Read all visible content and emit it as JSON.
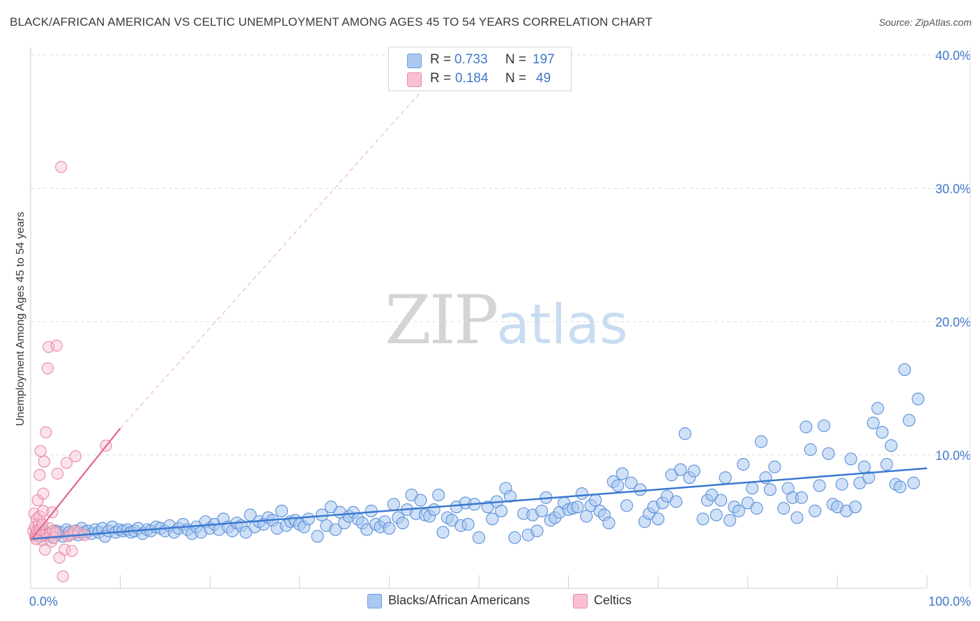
{
  "title": "BLACK/AFRICAN AMERICAN VS CELTIC UNEMPLOYMENT AMONG AGES 45 TO 54 YEARS CORRELATION CHART",
  "source": "Source: ZipAtlas.com",
  "watermark": {
    "zip": "ZIP",
    "atlas": "atlas"
  },
  "legend": {
    "rows": [
      {
        "r_label": "R =",
        "r_value": "0.733",
        "n_label": "N =",
        "n_value": "197",
        "color": "#aac8f0",
        "border": "#6a9ee0"
      },
      {
        "r_label": "R =",
        "r_value": "0.184",
        "n_label": "N =",
        "n_value": "49",
        "color": "#f8c0d0",
        "border": "#e88aa8"
      }
    ]
  },
  "bottom_legend": [
    {
      "label": "Blacks/African Americans",
      "color": "#aac8f0",
      "border": "#6a9ee0"
    },
    {
      "label": "Celtics",
      "color": "#f8c0d0",
      "border": "#e88aa8"
    }
  ],
  "chart_data": {
    "type": "scatter",
    "title": "BLACK/AFRICAN AMERICAN VS CELTIC UNEMPLOYMENT AMONG AGES 45 TO 54 YEARS CORRELATION CHART",
    "xlabel": "",
    "ylabel": "Unemployment Among Ages 45 to 54 years",
    "xlim": [
      0,
      100
    ],
    "ylim": [
      0,
      41
    ],
    "x_tick_labels": [
      "0.0%",
      "100.0%"
    ],
    "y_ticks": [
      10,
      20,
      30,
      40
    ],
    "y_tick_labels": [
      "10.0%",
      "20.0%",
      "30.0%",
      "40.0%"
    ],
    "grid": true,
    "colors": {
      "blue": "#5a8fd8",
      "blue_fill": "#aac8f0",
      "blue_line": "#3a78d0",
      "pink": "#e886a6",
      "pink_fill": "#f8c0d0",
      "pink_line": "#e0648c"
    },
    "series": [
      {
        "name": "Blacks/African Americans",
        "trend": {
          "x": [
            0,
            100
          ],
          "y": [
            3.7,
            9.0
          ]
        },
        "points": [
          [
            0.6,
            4.0
          ],
          [
            0.9,
            4.2
          ],
          [
            1.2,
            3.9
          ],
          [
            1.5,
            4.3
          ],
          [
            1.8,
            4.1
          ],
          [
            2.1,
            4.0
          ],
          [
            2.5,
            3.8
          ],
          [
            2.8,
            4.3
          ],
          [
            3.0,
            4.1
          ],
          [
            3.3,
            4.2
          ],
          [
            3.6,
            3.9
          ],
          [
            4.0,
            4.4
          ],
          [
            4.3,
            4.2
          ],
          [
            4.7,
            4.1
          ],
          [
            5.0,
            4.3
          ],
          [
            5.3,
            4.0
          ],
          [
            5.7,
            4.5
          ],
          [
            6.0,
            4.2
          ],
          [
            6.4,
            4.3
          ],
          [
            6.8,
            4.1
          ],
          [
            7.2,
            4.4
          ],
          [
            7.6,
            4.2
          ],
          [
            8.0,
            4.5
          ],
          [
            8.3,
            3.9
          ],
          [
            8.7,
            4.3
          ],
          [
            9.1,
            4.6
          ],
          [
            9.5,
            4.2
          ],
          [
            9.9,
            4.4
          ],
          [
            10.3,
            4.3
          ],
          [
            10.8,
            4.4
          ],
          [
            11.2,
            4.2
          ],
          [
            11.6,
            4.3
          ],
          [
            12.0,
            4.5
          ],
          [
            12.5,
            4.1
          ],
          [
            13.0,
            4.4
          ],
          [
            13.4,
            4.3
          ],
          [
            14.0,
            4.6
          ],
          [
            14.5,
            4.5
          ],
          [
            15.0,
            4.3
          ],
          [
            15.5,
            4.7
          ],
          [
            16.0,
            4.2
          ],
          [
            16.5,
            4.5
          ],
          [
            17.0,
            4.8
          ],
          [
            17.5,
            4.4
          ],
          [
            18.0,
            4.1
          ],
          [
            18.5,
            4.6
          ],
          [
            19.0,
            4.2
          ],
          [
            19.5,
            5.0
          ],
          [
            20.0,
            4.5
          ],
          [
            20.5,
            4.8
          ],
          [
            21.0,
            4.4
          ],
          [
            21.5,
            5.2
          ],
          [
            22.0,
            4.6
          ],
          [
            22.5,
            4.3
          ],
          [
            23.0,
            4.9
          ],
          [
            23.5,
            4.7
          ],
          [
            24.0,
            4.2
          ],
          [
            24.5,
            5.5
          ],
          [
            25.0,
            4.6
          ],
          [
            25.5,
            5.0
          ],
          [
            26.0,
            4.8
          ],
          [
            26.5,
            5.3
          ],
          [
            27.0,
            5.1
          ],
          [
            27.5,
            4.5
          ],
          [
            28.0,
            5.8
          ],
          [
            28.5,
            4.7
          ],
          [
            29.0,
            5.0
          ],
          [
            29.5,
            5.1
          ],
          [
            30.0,
            4.8
          ],
          [
            30.5,
            4.6
          ],
          [
            31.0,
            5.2
          ],
          [
            32.0,
            3.9
          ],
          [
            32.5,
            5.5
          ],
          [
            33.0,
            4.7
          ],
          [
            33.5,
            6.1
          ],
          [
            34.0,
            4.4
          ],
          [
            34.5,
            5.7
          ],
          [
            35.0,
            4.9
          ],
          [
            35.5,
            5.4
          ],
          [
            36.0,
            5.7
          ],
          [
            36.5,
            5.2
          ],
          [
            37.0,
            4.9
          ],
          [
            37.5,
            4.4
          ],
          [
            38.0,
            5.8
          ],
          [
            38.5,
            4.8
          ],
          [
            39.0,
            4.6
          ],
          [
            39.5,
            5.0
          ],
          [
            40.0,
            4.5
          ],
          [
            40.5,
            6.3
          ],
          [
            41.0,
            5.3
          ],
          [
            41.5,
            4.9
          ],
          [
            42.0,
            5.9
          ],
          [
            42.5,
            7.0
          ],
          [
            43.0,
            5.6
          ],
          [
            43.5,
            6.6
          ],
          [
            44.0,
            5.5
          ],
          [
            44.5,
            5.4
          ],
          [
            45.0,
            5.9
          ],
          [
            45.5,
            7.0
          ],
          [
            46.0,
            4.2
          ],
          [
            46.5,
            5.3
          ],
          [
            47.0,
            5.1
          ],
          [
            47.5,
            6.1
          ],
          [
            48.0,
            4.7
          ],
          [
            48.5,
            6.4
          ],
          [
            48.8,
            4.8
          ],
          [
            49.5,
            6.3
          ],
          [
            50.0,
            3.8
          ],
          [
            51.0,
            6.1
          ],
          [
            51.5,
            5.2
          ],
          [
            52.0,
            6.5
          ],
          [
            52.5,
            5.8
          ],
          [
            53.0,
            7.5
          ],
          [
            53.5,
            6.9
          ],
          [
            54.0,
            3.8
          ],
          [
            55.0,
            5.6
          ],
          [
            55.5,
            4.0
          ],
          [
            56.0,
            5.5
          ],
          [
            56.5,
            4.3
          ],
          [
            57.0,
            5.8
          ],
          [
            57.5,
            6.8
          ],
          [
            58.0,
            5.1
          ],
          [
            58.5,
            5.3
          ],
          [
            59.0,
            5.7
          ],
          [
            59.5,
            6.4
          ],
          [
            60.0,
            5.9
          ],
          [
            60.5,
            6.0
          ],
          [
            61.0,
            6.1
          ],
          [
            61.5,
            7.1
          ],
          [
            62.0,
            5.4
          ],
          [
            62.5,
            6.2
          ],
          [
            63.0,
            6.6
          ],
          [
            63.5,
            5.8
          ],
          [
            64.0,
            5.5
          ],
          [
            64.5,
            4.9
          ],
          [
            65.0,
            8.0
          ],
          [
            65.5,
            7.7
          ],
          [
            66.0,
            8.6
          ],
          [
            66.5,
            6.2
          ],
          [
            67.0,
            7.9
          ],
          [
            68.0,
            7.4
          ],
          [
            68.5,
            5.0
          ],
          [
            69.0,
            5.6
          ],
          [
            69.5,
            6.1
          ],
          [
            70.0,
            5.2
          ],
          [
            70.5,
            6.4
          ],
          [
            71.0,
            6.9
          ],
          [
            71.5,
            8.5
          ],
          [
            72.0,
            6.5
          ],
          [
            72.5,
            8.9
          ],
          [
            73.0,
            11.6
          ],
          [
            73.5,
            8.3
          ],
          [
            74.0,
            8.8
          ],
          [
            75.0,
            5.2
          ],
          [
            75.5,
            6.6
          ],
          [
            76.0,
            7.0
          ],
          [
            76.5,
            5.5
          ],
          [
            77.0,
            6.6
          ],
          [
            77.5,
            8.3
          ],
          [
            78.0,
            5.1
          ],
          [
            78.5,
            6.1
          ],
          [
            79.0,
            5.8
          ],
          [
            79.5,
            9.3
          ],
          [
            80.0,
            6.4
          ],
          [
            80.5,
            7.5
          ],
          [
            81.0,
            6.0
          ],
          [
            81.5,
            11.0
          ],
          [
            82.0,
            8.3
          ],
          [
            82.5,
            7.4
          ],
          [
            83.0,
            9.1
          ],
          [
            84.0,
            6.0
          ],
          [
            84.5,
            7.5
          ],
          [
            85.0,
            6.8
          ],
          [
            85.5,
            5.3
          ],
          [
            86.0,
            6.8
          ],
          [
            86.5,
            12.1
          ],
          [
            87.0,
            10.4
          ],
          [
            87.5,
            5.8
          ],
          [
            88.0,
            7.7
          ],
          [
            88.5,
            12.2
          ],
          [
            89.0,
            10.1
          ],
          [
            89.5,
            6.3
          ],
          [
            90.0,
            6.1
          ],
          [
            90.5,
            7.8
          ],
          [
            91.0,
            5.8
          ],
          [
            91.5,
            9.7
          ],
          [
            92.0,
            6.1
          ],
          [
            92.5,
            7.9
          ],
          [
            93.0,
            9.1
          ],
          [
            93.5,
            8.3
          ],
          [
            94.0,
            12.4
          ],
          [
            94.5,
            13.5
          ],
          [
            95.0,
            11.7
          ],
          [
            95.5,
            9.3
          ],
          [
            96.0,
            10.7
          ],
          [
            96.5,
            7.8
          ],
          [
            97.0,
            7.6
          ],
          [
            97.5,
            16.4
          ],
          [
            98.0,
            12.6
          ],
          [
            98.5,
            7.9
          ],
          [
            99.0,
            14.2
          ]
        ]
      },
      {
        "name": "Celtics",
        "trend": {
          "x": [
            0,
            10
          ],
          "y": [
            3.6,
            12.0
          ],
          "extended_to": [
            48,
            40.6
          ]
        },
        "points": [
          [
            0.3,
            4.3
          ],
          [
            0.4,
            5.6
          ],
          [
            0.5,
            3.9
          ],
          [
            0.5,
            4.6
          ],
          [
            0.6,
            4.0
          ],
          [
            0.7,
            5.2
          ],
          [
            0.7,
            4.3
          ],
          [
            0.8,
            6.6
          ],
          [
            0.8,
            4.0
          ],
          [
            0.9,
            4.8
          ],
          [
            1.0,
            5.4
          ],
          [
            1.0,
            8.5
          ],
          [
            1.1,
            10.3
          ],
          [
            1.2,
            4.2
          ],
          [
            1.3,
            3.6
          ],
          [
            1.4,
            7.1
          ],
          [
            1.4,
            5.8
          ],
          [
            1.5,
            9.5
          ],
          [
            1.6,
            4.0
          ],
          [
            1.6,
            2.9
          ],
          [
            1.7,
            11.7
          ],
          [
            1.8,
            4.1
          ],
          [
            1.9,
            16.5
          ],
          [
            2.0,
            18.1
          ],
          [
            2.1,
            4.5
          ],
          [
            2.2,
            4.1
          ],
          [
            2.3,
            3.5
          ],
          [
            2.4,
            5.7
          ],
          [
            2.5,
            4.3
          ],
          [
            2.6,
            3.8
          ],
          [
            2.8,
            4.2
          ],
          [
            2.9,
            18.2
          ],
          [
            3.0,
            8.6
          ],
          [
            3.2,
            2.3
          ],
          [
            3.4,
            31.6
          ],
          [
            3.6,
            0.9
          ],
          [
            3.8,
            2.9
          ],
          [
            4.0,
            9.4
          ],
          [
            4.2,
            3.9
          ],
          [
            4.4,
            4.0
          ],
          [
            4.6,
            2.8
          ],
          [
            4.8,
            4.3
          ],
          [
            5.0,
            9.9
          ],
          [
            5.3,
            4.2
          ],
          [
            6.0,
            4.0
          ],
          [
            8.4,
            10.7
          ],
          [
            0.6,
            3.7
          ],
          [
            1.0,
            4.4
          ],
          [
            1.3,
            4.8
          ]
        ]
      }
    ]
  }
}
